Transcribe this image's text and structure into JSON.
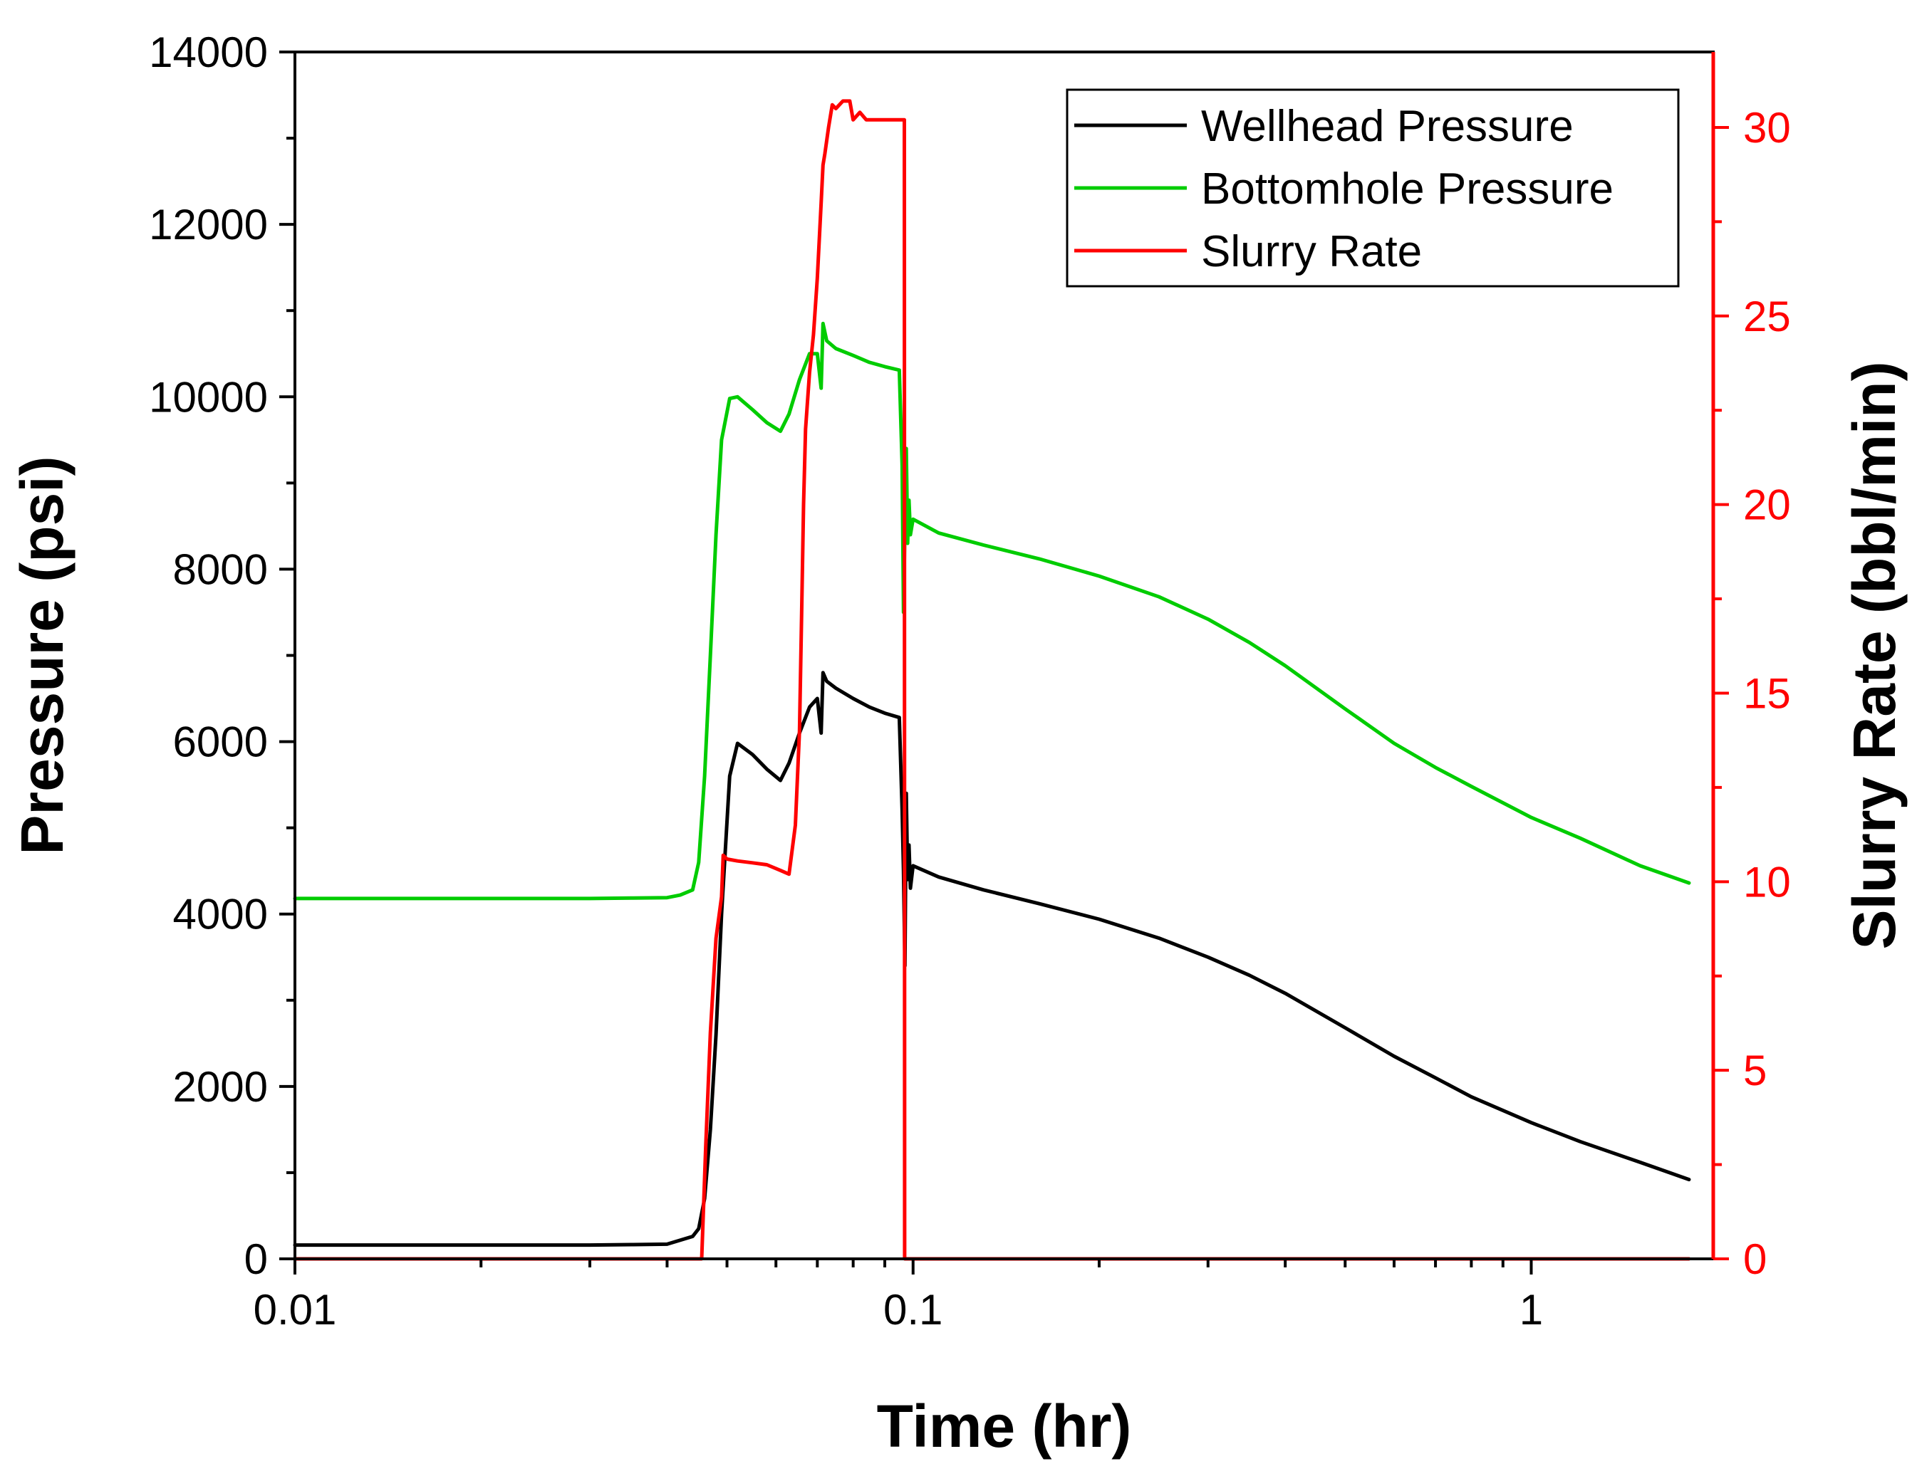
{
  "chart_data": {
    "type": "line",
    "x_scale": "log",
    "xlabel": "Time (hr)",
    "ylabel": "Pressure (psi)",
    "y2label": "Slurry Rate (bbl/min)",
    "xlim": [
      0.01,
      2
    ],
    "ylim": [
      0,
      14000
    ],
    "y2lim": [
      0,
      32
    ],
    "x_ticks": [
      {
        "value": 0.01,
        "label": "0.01"
      },
      {
        "value": 0.1,
        "label": "0.1"
      },
      {
        "value": 1,
        "label": "1"
      }
    ],
    "y_ticks": [
      {
        "value": 0,
        "label": "0"
      },
      {
        "value": 2000,
        "label": "2000"
      },
      {
        "value": 4000,
        "label": "4000"
      },
      {
        "value": 6000,
        "label": "6000"
      },
      {
        "value": 8000,
        "label": "8000"
      },
      {
        "value": 10000,
        "label": "10000"
      },
      {
        "value": 12000,
        "label": "12000"
      },
      {
        "value": 14000,
        "label": "14000"
      }
    ],
    "y2_ticks": [
      {
        "value": 0,
        "label": "0"
      },
      {
        "value": 5,
        "label": "5"
      },
      {
        "value": 10,
        "label": "10"
      },
      {
        "value": 15,
        "label": "15"
      },
      {
        "value": 20,
        "label": "20"
      },
      {
        "value": 25,
        "label": "25"
      },
      {
        "value": 30,
        "label": "30"
      }
    ],
    "legend_position": "top-right",
    "series": [
      {
        "name": "Wellhead Pressure",
        "color": "#000000",
        "axis": "left",
        "x": [
          0.01,
          0.02,
          0.03,
          0.035,
          0.04,
          0.044,
          0.045,
          0.046,
          0.047,
          0.048,
          0.049,
          0.0505,
          0.052,
          0.055,
          0.058,
          0.061,
          0.063,
          0.0655,
          0.068,
          0.07,
          0.071,
          0.0715,
          0.0725,
          0.075,
          0.08,
          0.085,
          0.09,
          0.095,
          0.096,
          0.0965,
          0.097,
          0.0975,
          0.098,
          0.0985,
          0.099,
          0.1,
          0.11,
          0.13,
          0.16,
          0.2,
          0.25,
          0.3,
          0.35,
          0.4,
          0.5,
          0.6,
          0.7,
          0.8,
          1.0,
          1.2,
          1.5,
          1.8
        ],
        "y": [
          160,
          160,
          160,
          165,
          170,
          260,
          350,
          700,
          1500,
          2600,
          4000,
          5600,
          5980,
          5850,
          5680,
          5550,
          5750,
          6100,
          6400,
          6500,
          6100,
          6800,
          6700,
          6620,
          6500,
          6400,
          6330,
          6280,
          5200,
          4500,
          3400,
          5400,
          4400,
          4800,
          4300,
          4560,
          4430,
          4280,
          4120,
          3940,
          3720,
          3500,
          3290,
          3080,
          2680,
          2350,
          2100,
          1880,
          1580,
          1360,
          1120,
          920
        ]
      },
      {
        "name": "Bottomhole Pressure",
        "color": "#00cc00",
        "axis": "left",
        "x": [
          0.01,
          0.02,
          0.03,
          0.035,
          0.04,
          0.042,
          0.044,
          0.045,
          0.046,
          0.047,
          0.048,
          0.049,
          0.0505,
          0.052,
          0.055,
          0.058,
          0.061,
          0.063,
          0.0655,
          0.068,
          0.07,
          0.071,
          0.0715,
          0.0725,
          0.075,
          0.08,
          0.085,
          0.09,
          0.095,
          0.096,
          0.0965,
          0.097,
          0.0975,
          0.098,
          0.0985,
          0.099,
          0.1,
          0.11,
          0.13,
          0.16,
          0.2,
          0.25,
          0.3,
          0.35,
          0.4,
          0.5,
          0.6,
          0.7,
          0.8,
          1.0,
          1.2,
          1.5,
          1.8
        ],
        "y": [
          4180,
          4180,
          4180,
          4185,
          4190,
          4220,
          4280,
          4600,
          5600,
          7000,
          8400,
          9500,
          9980,
          10000,
          9850,
          9700,
          9600,
          9800,
          10200,
          10500,
          10500,
          10100,
          10850,
          10650,
          10560,
          10480,
          10400,
          10350,
          10310,
          9200,
          7500,
          8500,
          9400,
          8300,
          8800,
          8400,
          8580,
          8420,
          8280,
          8120,
          7920,
          7680,
          7420,
          7150,
          6880,
          6380,
          5980,
          5700,
          5480,
          5120,
          4880,
          4560,
          4360
        ]
      },
      {
        "name": "Slurry Rate",
        "color": "#ff0000",
        "axis": "right",
        "x": [
          0.01,
          0.04,
          0.0455,
          0.0462,
          0.047,
          0.048,
          0.049,
          0.0493,
          0.05,
          0.052,
          0.055,
          0.058,
          0.061,
          0.063,
          0.0645,
          0.0655,
          0.066,
          0.0665,
          0.067,
          0.068,
          0.069,
          0.07,
          0.071,
          0.0715,
          0.072,
          0.073,
          0.074,
          0.075,
          0.077,
          0.079,
          0.08,
          0.082,
          0.084,
          0.09,
          0.0968,
          0.0969,
          0.1,
          1.8
        ],
        "y": [
          0,
          0,
          0,
          3,
          6,
          8.5,
          9.6,
          10.7,
          10.6,
          10.55,
          10.5,
          10.45,
          10.3,
          10.2,
          11.5,
          14,
          17,
          20,
          22,
          23.5,
          24.5,
          26,
          28,
          29,
          29.3,
          30,
          30.6,
          30.5,
          30.7,
          30.7,
          30.2,
          30.4,
          30.2,
          30.2,
          30.2,
          0,
          0,
          0
        ]
      }
    ]
  }
}
